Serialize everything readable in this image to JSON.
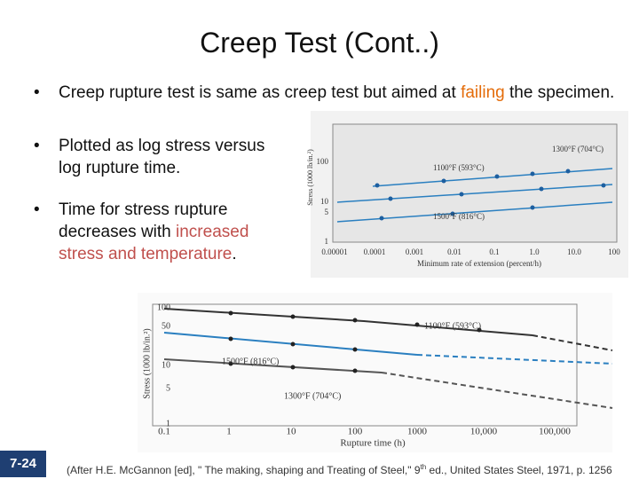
{
  "title": "Creep Test (Cont..)",
  "bullets": [
    {
      "segments": [
        {
          "text": "Creep rupture test is same as creep test but aimed at "
        },
        {
          "text": "failing",
          "color": "#e46c0a"
        },
        {
          "text": " the specimen."
        }
      ]
    },
    {
      "segments": [
        {
          "text": "Plotted as log stress versus log rupture time."
        }
      ]
    },
    {
      "segments": [
        {
          "text": "Time for stress rupture decreases with "
        },
        {
          "text": "increased stress and temperature",
          "color": "#c0504d"
        },
        {
          "text": "."
        }
      ]
    }
  ],
  "figure_1": {
    "y_label": "Stress (1000 lb/in.²)",
    "x_label": "Minimum rate of extension (percent/h)",
    "y_tick_labels": [
      "100",
      "10",
      "5",
      "1"
    ],
    "x_tick_labels": [
      "0.00001",
      "0.0001",
      "0.001",
      "0.01",
      "0.1",
      "1.0",
      "10.0",
      "100"
    ],
    "annotations": [
      "1300°F (704°C)",
      "1100°F (593°C)",
      "1500°F (816°C)"
    ]
  },
  "figure_2": {
    "y_label": "Stress (1000 lb/in.²)",
    "x_label": "Rupture time (h)",
    "y_tick_labels": [
      "100",
      "50",
      "10",
      "5",
      "1"
    ],
    "x_tick_labels": [
      "0.1",
      "1",
      "10",
      "100",
      "1000",
      "10,000",
      "100,000"
    ],
    "annotations": [
      "1100°F (593°C)",
      "1500°F (816°C)",
      "1300°F (704°C)"
    ]
  },
  "slide_number": "7-24",
  "citation": [
    "(After H.E. McGannon [ed], \" The making, shaping and Treating of Steel,\" 9",
    "th",
    " ed., United States Steel, 1971, p. 1256"
  ]
}
